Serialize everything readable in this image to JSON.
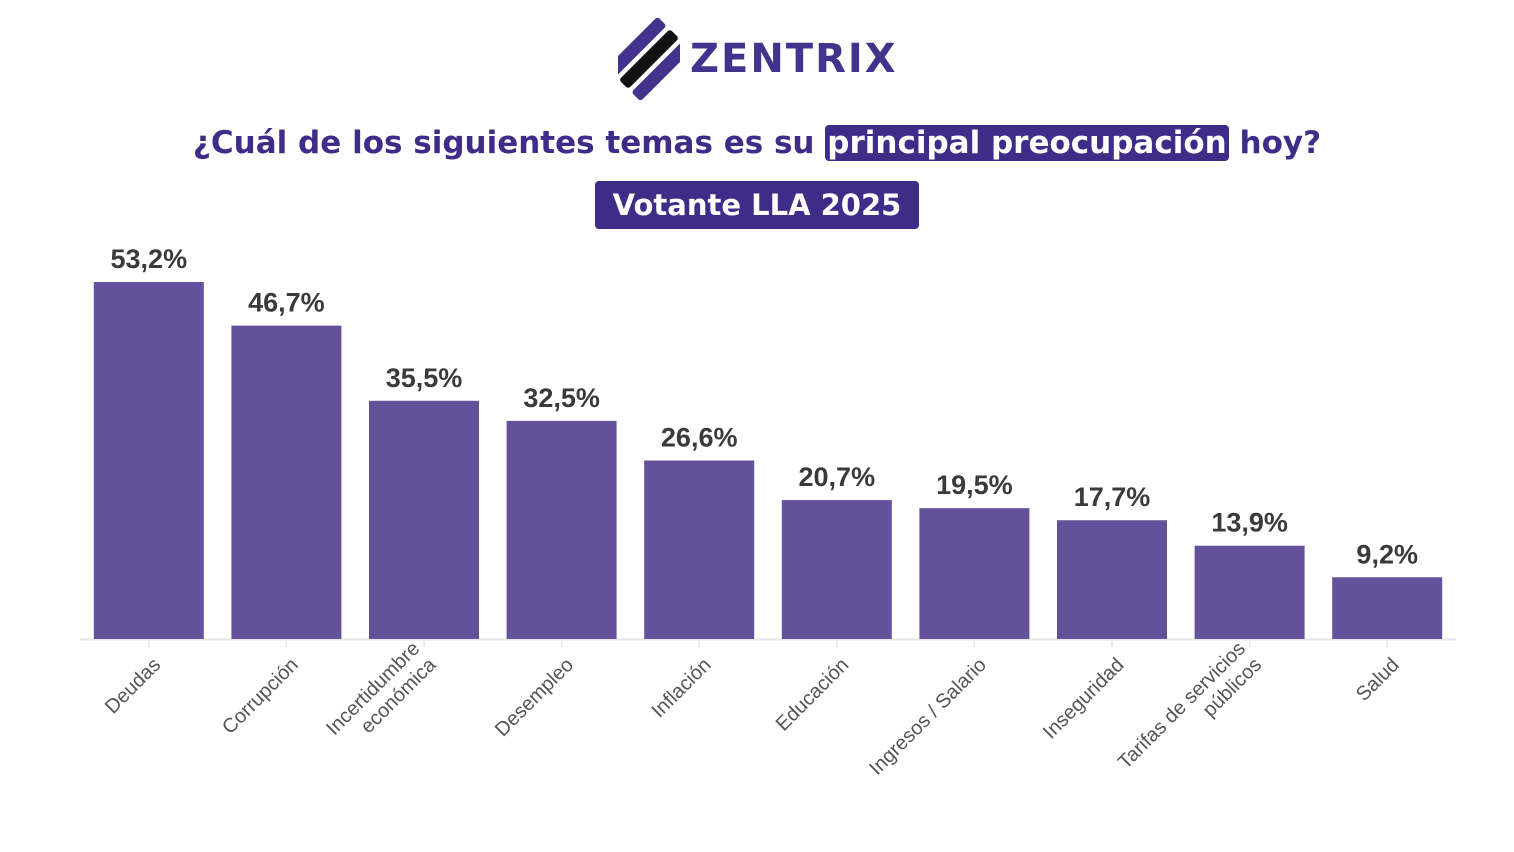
{
  "brand": {
    "name": "ZENTRIX",
    "color": "#44338c"
  },
  "header": {
    "question_before": "¿Cuál de los siguientes temas es su ",
    "question_highlight": "principal preocupación",
    "question_after": " hoy?",
    "badge": "Votante LLA 2025"
  },
  "colors": {
    "bar": "#65509b",
    "accent": "#3f2c89",
    "axis": "#e6e6e6"
  },
  "chart_data": {
    "type": "bar",
    "title": "¿Cuál de los siguientes temas es su principal preocupación hoy?",
    "subtitle": "Votante LLA 2025",
    "xlabel": "",
    "ylabel": "",
    "ylim": [
      0,
      53.2
    ],
    "grid": false,
    "categories": [
      [
        "Deudas"
      ],
      [
        "Corrupción"
      ],
      [
        "Incertidumbre",
        "económica"
      ],
      [
        "Desempleo"
      ],
      [
        "Inflación"
      ],
      [
        "Educación"
      ],
      [
        "Ingresos / Salario"
      ],
      [
        "Inseguridad"
      ],
      [
        "Tarifas de servicios",
        "públicos"
      ],
      [
        "Salud"
      ]
    ],
    "values": [
      53.2,
      46.7,
      35.5,
      32.5,
      26.6,
      20.7,
      19.5,
      17.7,
      13.9,
      9.2
    ],
    "value_labels": [
      "53,2%",
      "46,7%",
      "35,5%",
      "32,5%",
      "26,6%",
      "20,7%",
      "19,5%",
      "17,7%",
      "13,9%",
      "9,2%"
    ]
  }
}
